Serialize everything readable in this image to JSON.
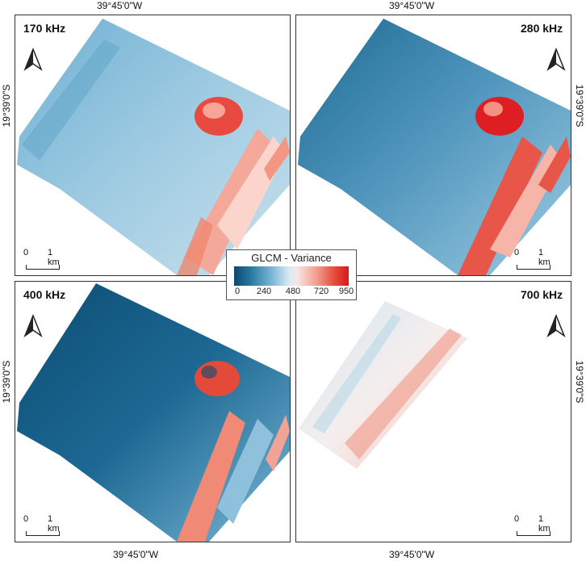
{
  "coordinates": {
    "lon_top_left": "39°45'0\"W",
    "lon_top_right": "39°45'0\"W",
    "lon_bottom_left": "39°45'0\"W",
    "lon_bottom_right": "39°45'0\"W",
    "lat_left_top": "19°39'0\"S",
    "lat_left_bottom": "19°39'0\"S",
    "lat_right_top": "19°39'0\"S",
    "lat_right_bottom": "19°39'0\"S"
  },
  "panels": [
    {
      "frequency": "170 kHz"
    },
    {
      "frequency": "280 kHz"
    },
    {
      "frequency": "400 kHz"
    },
    {
      "frequency": "700 kHz"
    }
  ],
  "scale_bar": {
    "start_label": "0",
    "end_label": "1 km"
  },
  "legend": {
    "title": "GLCM - Variance",
    "ticks": [
      "0",
      "240",
      "480",
      "720",
      "950"
    ],
    "colors": {
      "low": "#0b4a6e",
      "mid": "#f0f0f0",
      "high": "#d7191c"
    }
  },
  "icons": {
    "north_arrow": "north-arrow-icon"
  }
}
